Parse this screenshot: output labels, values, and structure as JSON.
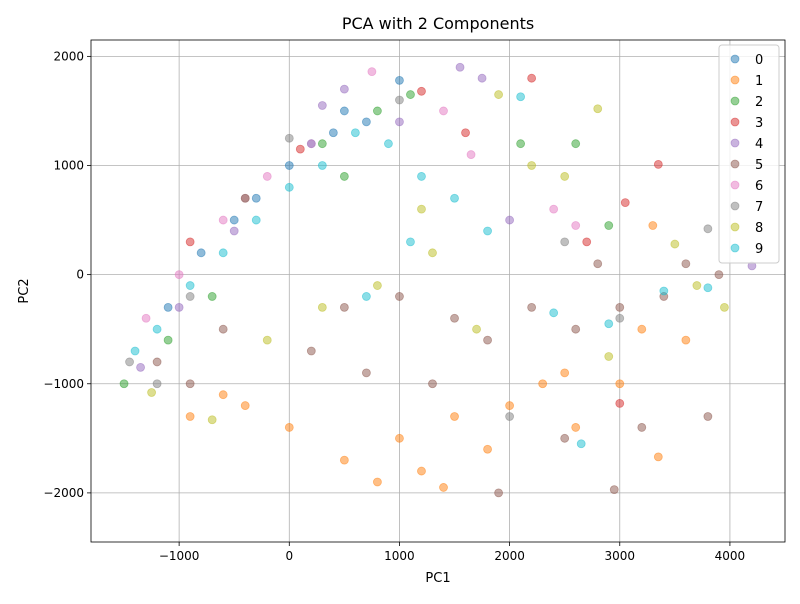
{
  "chart_data": {
    "type": "scatter",
    "title": "PCA with 2 Components",
    "xlabel": "PC1",
    "ylabel": "PC2",
    "xlim": [
      -1800,
      4500
    ],
    "ylim": [
      -2450,
      2150
    ],
    "xticks": [
      -1000,
      0,
      1000,
      2000,
      3000,
      4000
    ],
    "yticks": [
      -2000,
      -1000,
      0,
      1000,
      2000
    ],
    "xtick_labels": [
      "−1000",
      "0",
      "1000",
      "2000",
      "3000",
      "4000"
    ],
    "ytick_labels": [
      "−2000",
      "−1000",
      "0",
      "1000",
      "2000"
    ],
    "grid": true,
    "legend_position": "top-right",
    "marker_alpha": 0.5,
    "series": [
      {
        "name": "0",
        "color": "#1f77b4",
        "values": [
          [
            -300,
            700
          ],
          [
            0,
            1000
          ],
          [
            200,
            1200
          ],
          [
            500,
            1500
          ],
          [
            -800,
            200
          ],
          [
            -1100,
            -300
          ],
          [
            700,
            1400
          ],
          [
            1000,
            1780
          ],
          [
            400,
            1300
          ],
          [
            -500,
            500
          ]
        ]
      },
      {
        "name": "1",
        "color": "#ff7f0e",
        "values": [
          [
            0,
            -1400
          ],
          [
            500,
            -1700
          ],
          [
            1000,
            -1500
          ],
          [
            1500,
            -1300
          ],
          [
            2000,
            -1200
          ],
          [
            -900,
            -1300
          ],
          [
            -400,
            -1200
          ],
          [
            800,
            -1900
          ],
          [
            1200,
            -1800
          ],
          [
            1800,
            -1600
          ],
          [
            2300,
            -1000
          ],
          [
            2600,
            -1400
          ],
          [
            3000,
            -1000
          ],
          [
            3200,
            -500
          ],
          [
            3600,
            -600
          ],
          [
            3350,
            -1670
          ],
          [
            1400,
            -1950
          ],
          [
            -600,
            -1100
          ],
          [
            2500,
            -900
          ],
          [
            3300,
            450
          ]
        ]
      },
      {
        "name": "2",
        "color": "#2ca02c",
        "values": [
          [
            -1500,
            -1000
          ],
          [
            -1100,
            -600
          ],
          [
            -700,
            -200
          ],
          [
            300,
            1200
          ],
          [
            800,
            1500
          ],
          [
            1100,
            1650
          ],
          [
            2100,
            1200
          ],
          [
            2600,
            1200
          ],
          [
            2900,
            450
          ],
          [
            500,
            900
          ]
        ]
      },
      {
        "name": "3",
        "color": "#d62728",
        "values": [
          [
            -900,
            300
          ],
          [
            -400,
            700
          ],
          [
            100,
            1150
          ],
          [
            1200,
            1680
          ],
          [
            2200,
            1800
          ],
          [
            3350,
            1010
          ],
          [
            3050,
            660
          ],
          [
            3000,
            -1180
          ],
          [
            1600,
            1300
          ],
          [
            2700,
            300
          ]
        ]
      },
      {
        "name": "4",
        "color": "#9467bd",
        "values": [
          [
            -1350,
            -850
          ],
          [
            -1000,
            -300
          ],
          [
            -500,
            400
          ],
          [
            300,
            1550
          ],
          [
            500,
            1700
          ],
          [
            1550,
            1900
          ],
          [
            1750,
            1800
          ],
          [
            4200,
            80
          ],
          [
            2000,
            500
          ],
          [
            1000,
            1400
          ]
        ]
      },
      {
        "name": "5",
        "color": "#8c564b",
        "values": [
          [
            -1200,
            -800
          ],
          [
            -600,
            -500
          ],
          [
            200,
            -700
          ],
          [
            700,
            -900
          ],
          [
            1300,
            -1000
          ],
          [
            1800,
            -600
          ],
          [
            2200,
            -300
          ],
          [
            2600,
            -500
          ],
          [
            3000,
            -300
          ],
          [
            3400,
            -200
          ],
          [
            3800,
            -1300
          ],
          [
            3200,
            -1400
          ],
          [
            2950,
            -1970
          ],
          [
            1900,
            -2000
          ],
          [
            2500,
            -1500
          ],
          [
            1500,
            -400
          ],
          [
            1000,
            -200
          ],
          [
            3600,
            100
          ],
          [
            3900,
            0
          ],
          [
            2800,
            100
          ],
          [
            -900,
            -1000
          ],
          [
            500,
            -300
          ]
        ]
      },
      {
        "name": "6",
        "color": "#e377c2",
        "values": [
          [
            -1300,
            -400
          ],
          [
            -1000,
            0
          ],
          [
            -600,
            500
          ],
          [
            -200,
            900
          ],
          [
            200,
            1200
          ],
          [
            750,
            1860
          ],
          [
            1400,
            1500
          ],
          [
            1650,
            1100
          ],
          [
            2400,
            600
          ],
          [
            2600,
            450
          ]
        ]
      },
      {
        "name": "7",
        "color": "#7f7f7f",
        "values": [
          [
            -1450,
            -800
          ],
          [
            -1200,
            -1000
          ],
          [
            -900,
            -200
          ],
          [
            -400,
            700
          ],
          [
            0,
            1250
          ],
          [
            1000,
            1600
          ],
          [
            2500,
            300
          ],
          [
            3000,
            -400
          ],
          [
            3800,
            420
          ],
          [
            2000,
            -1300
          ]
        ]
      },
      {
        "name": "8",
        "color": "#bcbd22",
        "values": [
          [
            -1250,
            -1080
          ],
          [
            -700,
            -1330
          ],
          [
            -200,
            -600
          ],
          [
            300,
            -300
          ],
          [
            800,
            -100
          ],
          [
            1300,
            200
          ],
          [
            1900,
            1650
          ],
          [
            2200,
            1000
          ],
          [
            2500,
            900
          ],
          [
            2800,
            1520
          ],
          [
            3500,
            280
          ],
          [
            3700,
            -100
          ],
          [
            3950,
            -300
          ],
          [
            1200,
            600
          ],
          [
            1700,
            -500
          ],
          [
            2900,
            -750
          ]
        ]
      },
      {
        "name": "9",
        "color": "#17becf",
        "values": [
          [
            -1400,
            -700
          ],
          [
            -1200,
            -500
          ],
          [
            -900,
            -100
          ],
          [
            -600,
            200
          ],
          [
            -300,
            500
          ],
          [
            0,
            800
          ],
          [
            300,
            1000
          ],
          [
            600,
            1300
          ],
          [
            900,
            1200
          ],
          [
            1200,
            900
          ],
          [
            1500,
            700
          ],
          [
            1800,
            400
          ],
          [
            2100,
            1630
          ],
          [
            2650,
            -1550
          ],
          [
            3400,
            -150
          ],
          [
            3800,
            -120
          ],
          [
            2400,
            -350
          ],
          [
            2900,
            -450
          ],
          [
            1100,
            300
          ],
          [
            700,
            -200
          ]
        ]
      }
    ]
  }
}
